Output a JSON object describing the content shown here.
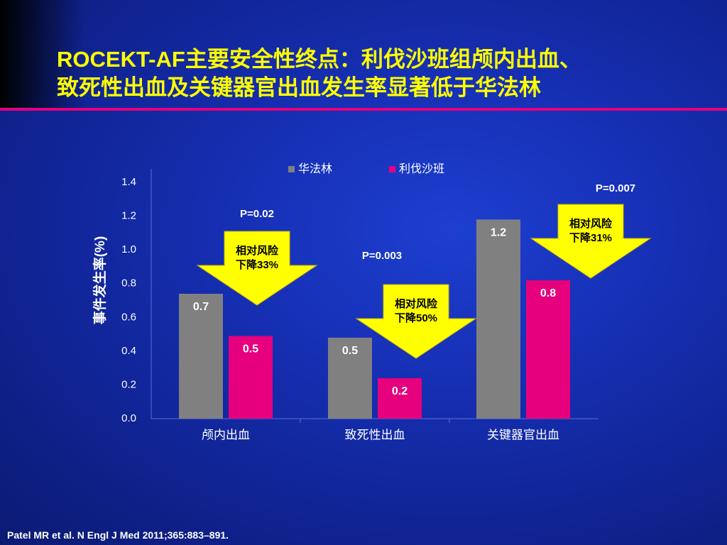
{
  "slide": {
    "title_line1": "ROCEKT-AF主要安全性终点：利伐沙班组颅内出血、",
    "title_line2": "致死性出血及关键器官出血发生率显著低于华法林",
    "citation": "Patel MR et al. N Engl J Med 2011;365:883–891."
  },
  "colors": {
    "background": "#1731b8",
    "title": "#ffff00",
    "rule": "#e6007e",
    "series_warfarin": "#808080",
    "series_rivaroxaban": "#e6007e",
    "callout": "#ffff00"
  },
  "chart_data": {
    "type": "bar",
    "ylabel": "事件发生率(%)",
    "ylim": [
      0,
      1.4
    ],
    "yticks": [
      "0.0",
      "0.2",
      "0.4",
      "0.6",
      "0.8",
      "1.0",
      "1.2",
      "1.4"
    ],
    "categories": [
      "颅内出血",
      "致死性出血",
      "关键器官出血"
    ],
    "legend_position": "top",
    "grid": false,
    "series": [
      {
        "name": "华法林",
        "values": [
          0.74,
          0.48,
          1.18
        ],
        "labels": [
          "0.7",
          "0.5",
          "1.2"
        ]
      },
      {
        "name": "利伐沙班",
        "values": [
          0.49,
          0.24,
          0.82
        ],
        "labels": [
          "0.5",
          "0.2",
          "0.8"
        ]
      }
    ],
    "annotations": [
      {
        "p_value": "P=0.02",
        "line1": "相对风险",
        "line2": "下降33%"
      },
      {
        "p_value": "P=0.003",
        "line1": "相对风险",
        "line2": "下降50%"
      },
      {
        "p_value": "P=0.007",
        "line1": "相对风险",
        "line2": "下降31%"
      }
    ]
  }
}
